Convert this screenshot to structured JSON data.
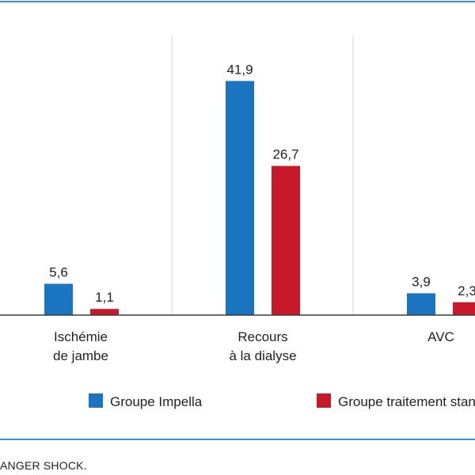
{
  "colors": {
    "frame": "#3a8fd0",
    "series_impella": "#1a74bf",
    "series_traitement": "#c8192b",
    "separator": "#d4d4d4",
    "axis": "#3a3a3a"
  },
  "chart_data": {
    "type": "bar",
    "categories": [
      [
        "Ischémie",
        "de jambe"
      ],
      [
        "Recours",
        "à la dialyse"
      ],
      [
        "AVC"
      ]
    ],
    "series": [
      {
        "name": "Groupe Impella",
        "values": [
          5.6,
          41.9,
          3.9
        ],
        "labels": [
          "5,6",
          "41,9",
          "3,9"
        ]
      },
      {
        "name": "Groupe traitement standard",
        "values": [
          1.1,
          26.7,
          2.3
        ],
        "labels": [
          "1,1",
          "26,7",
          "2,3"
        ]
      }
    ],
    "ylim": [
      0,
      45
    ],
    "grid": false,
    "legend": "bottom"
  },
  "caption": "ANGER SHOCK."
}
